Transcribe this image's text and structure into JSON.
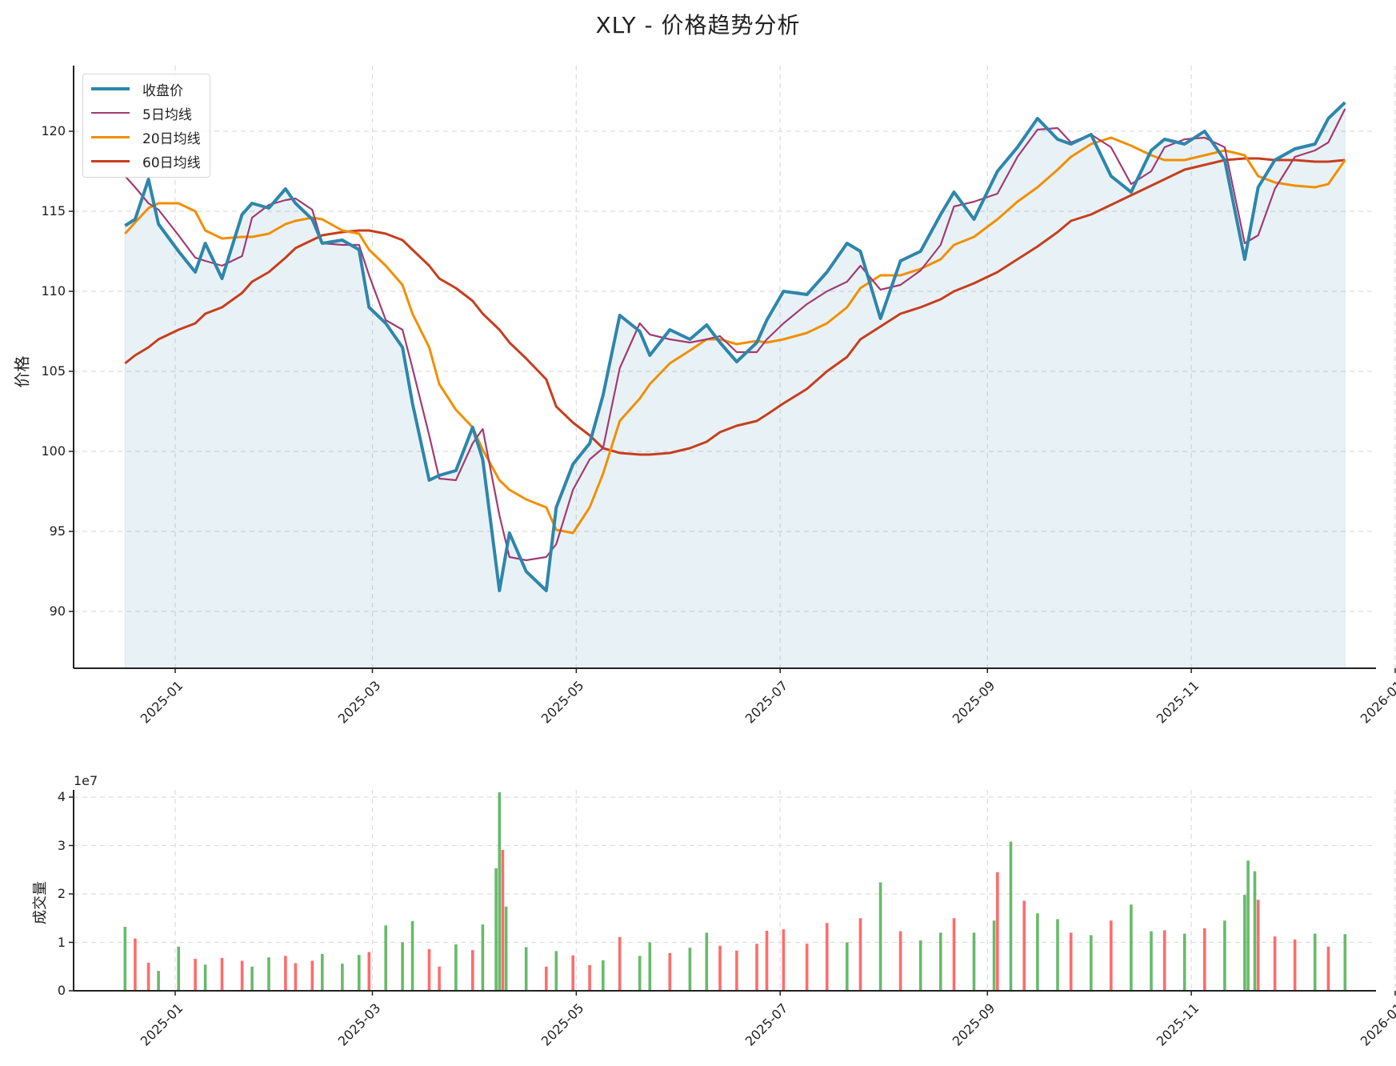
{
  "title": "XLY - 价格趋势分析",
  "price_panel": {
    "ylabel": "价格",
    "yticks": [
      "90",
      "95",
      "100",
      "105",
      "110",
      "115",
      "120"
    ],
    "xticks": [
      "2025-01",
      "2025-03",
      "2025-05",
      "2025-07",
      "2025-09",
      "2025-11",
      "2026-01"
    ],
    "legend": [
      {
        "label": "收盘价",
        "color": "#2E86AB"
      },
      {
        "label": "5日均线",
        "color": "#A23B72"
      },
      {
        "label": "20日均线",
        "color": "#F18F01"
      },
      {
        "label": "60日均线",
        "color": "#C73E1D"
      }
    ]
  },
  "volume_panel": {
    "ylabel": "成交量",
    "offset_label": "1e7",
    "yticks": [
      "0",
      "1",
      "2",
      "3",
      "4"
    ],
    "xticks": [
      "2025-01",
      "2025-03",
      "2025-05",
      "2025-07",
      "2025-09",
      "2025-11",
      "2026-01"
    ],
    "up_color": "#4CAF50",
    "down_color": "#FF5252"
  },
  "chart_data": [
    {
      "type": "line",
      "title": "XLY - 价格趋势分析",
      "xlabel": "",
      "ylabel": "价格",
      "ylim": [
        86.5,
        124
      ],
      "xlim": [
        "2024-12-01",
        "2026-01-05"
      ],
      "grid": true,
      "legend_position": "upper left",
      "fill_under": "收盘价",
      "x": [
        "2024-12-17",
        "2024-12-20",
        "2024-12-24",
        "2024-12-27",
        "2025-01-02",
        "2025-01-07",
        "2025-01-10",
        "2025-01-15",
        "2025-01-21",
        "2025-01-24",
        "2025-01-29",
        "2025-02-03",
        "2025-02-06",
        "2025-02-11",
        "2025-02-14",
        "2025-02-20",
        "2025-02-25",
        "2025-02-28",
        "2025-03-05",
        "2025-03-10",
        "2025-03-13",
        "2025-03-18",
        "2025-03-21",
        "2025-03-26",
        "2025-03-31",
        "2025-04-03",
        "2025-04-08",
        "2025-04-11",
        "2025-04-16",
        "2025-04-22",
        "2025-04-25",
        "2025-04-30",
        "2025-05-05",
        "2025-05-09",
        "2025-05-14",
        "2025-05-20",
        "2025-05-23",
        "2025-05-29",
        "2025-06-04",
        "2025-06-09",
        "2025-06-13",
        "2025-06-18",
        "2025-06-24",
        "2025-06-27",
        "2025-07-02",
        "2025-07-09",
        "2025-07-15",
        "2025-07-21",
        "2025-07-25",
        "2025-07-31",
        "2025-08-06",
        "2025-08-12",
        "2025-08-18",
        "2025-08-22",
        "2025-08-28",
        "2025-09-04",
        "2025-09-10",
        "2025-09-16",
        "2025-09-22",
        "2025-09-26",
        "2025-10-02",
        "2025-10-08",
        "2025-10-14",
        "2025-10-20",
        "2025-10-24",
        "2025-10-30",
        "2025-11-05",
        "2025-11-11",
        "2025-11-17",
        "2025-11-21",
        "2025-11-26",
        "2025-12-02",
        "2025-12-08",
        "2025-12-12",
        "2025-12-17"
      ],
      "series": [
        {
          "name": "收盘价",
          "color": "#2E86AB",
          "values": [
            114.1,
            114.5,
            117.0,
            114.2,
            112.5,
            111.2,
            113.0,
            110.8,
            114.8,
            115.5,
            115.2,
            116.4,
            115.5,
            114.5,
            113.0,
            113.2,
            112.6,
            109.0,
            108.0,
            106.5,
            103.0,
            98.2,
            98.5,
            98.8,
            101.5,
            99.5,
            91.3,
            94.9,
            92.5,
            91.3,
            96.5,
            99.2,
            100.5,
            103.5,
            108.5,
            107.5,
            106.0,
            107.6,
            107.0,
            107.9,
            106.8,
            105.6,
            106.8,
            108.2,
            110.0,
            109.8,
            111.2,
            113.0,
            112.5,
            108.3,
            111.9,
            112.5,
            114.8,
            116.2,
            114.5,
            117.5,
            119.0,
            120.8,
            119.5,
            119.2,
            119.8,
            117.2,
            116.2,
            118.8,
            119.5,
            119.2,
            120.0,
            118.2,
            112.0,
            116.5,
            118.2,
            118.9,
            119.2,
            120.8,
            121.8
          ]
        },
        {
          "name": "5日均线",
          "color": "#A23B72",
          "values": [
            117.2,
            116.5,
            115.5,
            115.1,
            113.5,
            112.1,
            111.9,
            111.6,
            112.2,
            114.6,
            115.4,
            115.7,
            115.8,
            115.1,
            113.0,
            112.9,
            112.9,
            111.0,
            108.2,
            107.6,
            105.2,
            101.0,
            98.3,
            98.2,
            100.5,
            101.4,
            96.0,
            93.4,
            93.2,
            93.4,
            94.2,
            97.6,
            99.5,
            100.2,
            105.2,
            108.0,
            107.3,
            107.0,
            106.8,
            107.0,
            107.2,
            106.2,
            106.2,
            107.0,
            108.0,
            109.2,
            110.0,
            110.6,
            111.6,
            110.1,
            110.4,
            111.3,
            112.9,
            115.3,
            115.6,
            116.1,
            118.4,
            120.1,
            120.2,
            119.3,
            119.8,
            119.0,
            116.7,
            117.5,
            119.0,
            119.5,
            119.6,
            119.0,
            113.0,
            113.5,
            116.4,
            118.4,
            118.8,
            119.3,
            121.4
          ]
        },
        {
          "name": "20日均线",
          "color": "#F18F01",
          "values": [
            113.6,
            114.3,
            115.2,
            115.5,
            115.5,
            115.0,
            113.8,
            113.3,
            113.4,
            113.4,
            113.6,
            114.2,
            114.4,
            114.6,
            114.5,
            113.8,
            113.6,
            112.6,
            111.6,
            110.4,
            108.6,
            106.5,
            104.2,
            102.6,
            101.5,
            100.1,
            98.2,
            97.6,
            97.0,
            96.5,
            95.1,
            94.9,
            96.5,
            98.6,
            101.9,
            103.3,
            104.2,
            105.5,
            106.3,
            107.0,
            107.0,
            106.7,
            106.9,
            106.8,
            107.0,
            107.4,
            108.0,
            109.0,
            110.2,
            111.0,
            111.0,
            111.4,
            112.0,
            112.9,
            113.4,
            114.5,
            115.6,
            116.5,
            117.6,
            118.4,
            119.2,
            119.6,
            119.1,
            118.5,
            118.2,
            118.2,
            118.5,
            118.8,
            118.5,
            117.2,
            116.8,
            116.6,
            116.5,
            116.7,
            118.2
          ]
        },
        {
          "name": "60日均线",
          "color": "#C73E1D",
          "values": [
            105.5,
            106.0,
            106.5,
            107.0,
            107.6,
            108.0,
            108.6,
            109.0,
            109.9,
            110.6,
            111.2,
            112.1,
            112.7,
            113.2,
            113.5,
            113.7,
            113.8,
            113.8,
            113.6,
            113.2,
            112.6,
            111.6,
            110.8,
            110.2,
            109.4,
            108.6,
            107.6,
            106.8,
            105.8,
            104.5,
            102.8,
            101.8,
            101.0,
            100.2,
            99.9,
            99.8,
            99.8,
            99.9,
            100.2,
            100.6,
            101.2,
            101.6,
            101.9,
            102.3,
            103.0,
            103.9,
            105.0,
            105.9,
            107.0,
            107.8,
            108.6,
            109.0,
            109.5,
            110.0,
            110.5,
            111.2,
            112.0,
            112.8,
            113.7,
            114.4,
            114.8,
            115.4,
            116.0,
            116.6,
            117.0,
            117.6,
            117.9,
            118.2,
            118.3,
            118.3,
            118.2,
            118.2,
            118.1,
            118.1,
            118.2
          ]
        }
      ]
    },
    {
      "type": "bar",
      "title": "",
      "xlabel": "",
      "ylabel": "成交量",
      "ylim": [
        0,
        43000000
      ],
      "offset_label": "1e7",
      "grid": true,
      "x": [
        "2024-12-17",
        "2024-12-20",
        "2024-12-24",
        "2024-12-27",
        "2025-01-02",
        "2025-01-07",
        "2025-01-10",
        "2025-01-15",
        "2025-01-21",
        "2025-01-24",
        "2025-01-29",
        "2025-02-03",
        "2025-02-06",
        "2025-02-11",
        "2025-02-14",
        "2025-02-20",
        "2025-02-25",
        "2025-02-28",
        "2025-03-05",
        "2025-03-10",
        "2025-03-13",
        "2025-03-18",
        "2025-03-21",
        "2025-03-26",
        "2025-03-31",
        "2025-04-03",
        "2025-04-07",
        "2025-04-08",
        "2025-04-09",
        "2025-04-10",
        "2025-04-16",
        "2025-04-22",
        "2025-04-25",
        "2025-04-30",
        "2025-05-05",
        "2025-05-09",
        "2025-05-14",
        "2025-05-20",
        "2025-05-23",
        "2025-05-29",
        "2025-06-04",
        "2025-06-09",
        "2025-06-13",
        "2025-06-18",
        "2025-06-24",
        "2025-06-27",
        "2025-07-02",
        "2025-07-09",
        "2025-07-15",
        "2025-07-21",
        "2025-07-25",
        "2025-07-31",
        "2025-08-06",
        "2025-08-12",
        "2025-08-18",
        "2025-08-22",
        "2025-08-28",
        "2025-09-03",
        "2025-09-04",
        "2025-09-08",
        "2025-09-12",
        "2025-09-16",
        "2025-09-22",
        "2025-09-26",
        "2025-10-02",
        "2025-10-08",
        "2025-10-14",
        "2025-10-20",
        "2025-10-24",
        "2025-10-30",
        "2025-11-05",
        "2025-11-11",
        "2025-11-17",
        "2025-11-18",
        "2025-11-20",
        "2025-11-21",
        "2025-11-26",
        "2025-12-02",
        "2025-12-08",
        "2025-12-12",
        "2025-12-17"
      ],
      "values": [
        13200000,
        10800000,
        5800000,
        4100000,
        9100000,
        6600000,
        5400000,
        6800000,
        6200000,
        5000000,
        6900000,
        7200000,
        5700000,
        6200000,
        7600000,
        5600000,
        7400000,
        8000000,
        13500000,
        10000000,
        14400000,
        8600000,
        5000000,
        9600000,
        8400000,
        13700000,
        25300000,
        41000000,
        29100000,
        17400000,
        9000000,
        5000000,
        8200000,
        7300000,
        5300000,
        6300000,
        11100000,
        7200000,
        10000000,
        7800000,
        8900000,
        12000000,
        9300000,
        8300000,
        9700000,
        12400000,
        12700000,
        9700000,
        14000000,
        10000000,
        15000000,
        22400000,
        12300000,
        10400000,
        12000000,
        15000000,
        12000000,
        14500000,
        24500000,
        30800000,
        18600000,
        16000000,
        14800000,
        12000000,
        11500000,
        14500000,
        17800000,
        12300000,
        12500000,
        11800000,
        12900000,
        14500000,
        19800000,
        26900000,
        24700000,
        18800000,
        11200000,
        10600000,
        11800000,
        9100000,
        11700000
      ],
      "colors": [
        "up",
        "down",
        "down",
        "up",
        "up",
        "down",
        "up",
        "down",
        "down",
        "up",
        "up",
        "down",
        "down",
        "down",
        "up",
        "up",
        "up",
        "down",
        "up",
        "up",
        "up",
        "down",
        "down",
        "up",
        "down",
        "up",
        "up",
        "up",
        "down",
        "up",
        "up",
        "down",
        "up",
        "down",
        "down",
        "up",
        "down",
        "up",
        "up",
        "down",
        "up",
        "up",
        "down",
        "down",
        "down",
        "down",
        "down",
        "down",
        "down",
        "up",
        "down",
        "up",
        "down",
        "up",
        "up",
        "down",
        "up",
        "up",
        "down",
        "up",
        "down",
        "up",
        "up",
        "down",
        "up",
        "down",
        "up",
        "up",
        "down",
        "up",
        "down",
        "up",
        "up",
        "up",
        "up",
        "down",
        "down",
        "down",
        "up",
        "down",
        "up"
      ]
    }
  ]
}
